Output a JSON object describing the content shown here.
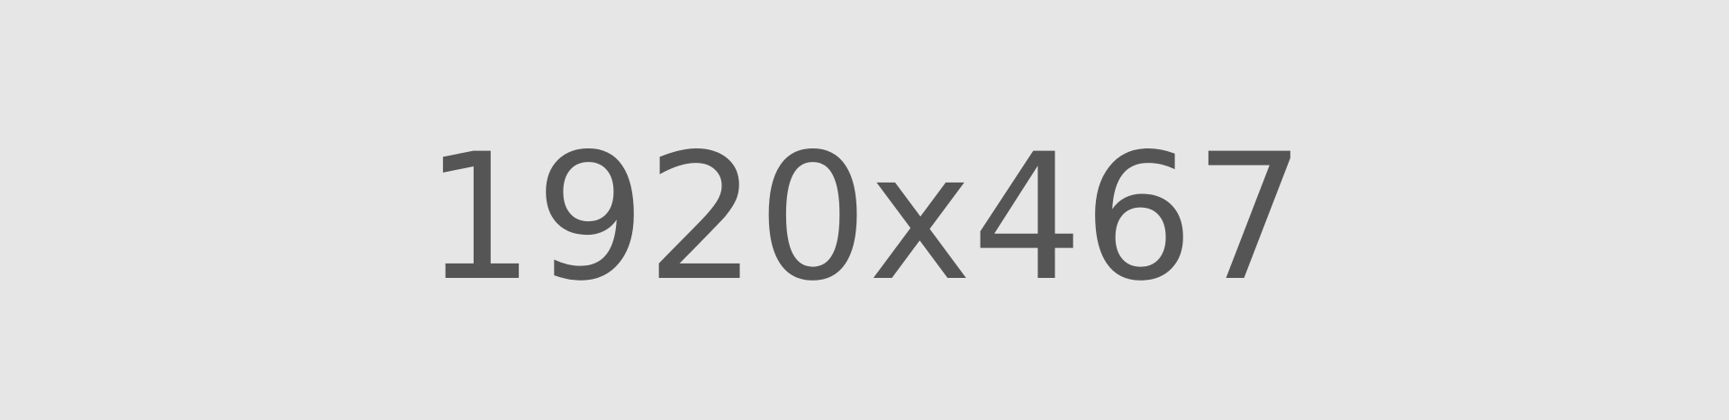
{
  "placeholder": {
    "text": "1920x467",
    "background_color": "#e6e6e6",
    "text_color": "#555555"
  }
}
